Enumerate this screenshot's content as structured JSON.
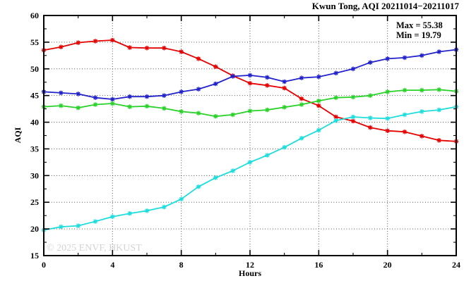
{
  "header": {
    "title": "Kwun Tong, AQI 20211014−20211017"
  },
  "stats_box": {
    "max_label": "Max = 55.38",
    "min_label": "Min = 19.79"
  },
  "watermark": {
    "text": "© 2025 ENVF, HKUST",
    "color": "#d4d4d4"
  },
  "chart_data": {
    "type": "line",
    "title": "Kwun Tong, AQI 20211014−20211017",
    "xlabel": "Hours",
    "ylabel": "AQI",
    "xlim": [
      0,
      24
    ],
    "ylim": [
      15,
      60
    ],
    "x_major_ticks": [
      0,
      4,
      8,
      12,
      16,
      20,
      24
    ],
    "x_minor_ticks": [
      2,
      6,
      10,
      14,
      18,
      22
    ],
    "y_major_ticks": [
      15,
      20,
      25,
      30,
      35,
      40,
      45,
      50,
      55,
      60
    ],
    "y_minor_ticks": [
      17.5,
      22.5,
      27.5,
      32.5,
      37.5,
      42.5,
      47.5,
      52.5,
      57.5
    ],
    "x_gridlines": [
      4,
      8,
      12,
      16,
      20
    ],
    "y_gridlines": [
      20,
      25,
      30,
      35,
      40,
      45,
      50,
      55
    ],
    "grid_style": "dotted",
    "legend": "none",
    "marker": "asterisk",
    "max": 55.38,
    "min": 19.79,
    "x": [
      0,
      1,
      2,
      3,
      4,
      5,
      6,
      7,
      8,
      9,
      10,
      11,
      12,
      13,
      14,
      15,
      16,
      17,
      18,
      19,
      20,
      21,
      22,
      23,
      24
    ],
    "series": [
      {
        "name": "red",
        "color": "#e60000",
        "values": [
          53.5,
          54.1,
          54.9,
          55.2,
          55.38,
          54.0,
          53.9,
          53.9,
          53.2,
          51.9,
          50.4,
          48.7,
          47.3,
          46.9,
          46.4,
          44.4,
          43.1,
          41.0,
          40.2,
          39.0,
          38.4,
          38.2,
          37.4,
          36.6,
          36.4
        ]
      },
      {
        "name": "blue",
        "color": "#2222cc",
        "values": [
          45.7,
          45.5,
          45.3,
          44.6,
          44.3,
          44.8,
          44.8,
          45.0,
          45.7,
          46.2,
          47.2,
          48.6,
          48.8,
          48.4,
          47.6,
          48.3,
          48.5,
          49.2,
          50.0,
          51.2,
          51.9,
          52.1,
          52.5,
          53.2,
          53.6
        ]
      },
      {
        "name": "green",
        "color": "#28d228",
        "values": [
          42.9,
          43.1,
          42.7,
          43.3,
          43.5,
          42.9,
          43.0,
          42.6,
          42.0,
          41.7,
          41.1,
          41.4,
          42.1,
          42.3,
          42.8,
          43.3,
          44.0,
          44.6,
          44.7,
          45.0,
          45.7,
          46.0,
          46.0,
          46.1,
          45.8
        ]
      },
      {
        "name": "cyan",
        "color": "#1ddddd",
        "values": [
          19.79,
          20.4,
          20.6,
          21.4,
          22.3,
          22.9,
          23.4,
          24.1,
          25.6,
          27.9,
          29.6,
          30.9,
          32.5,
          33.8,
          35.3,
          37.0,
          38.5,
          40.3,
          41.0,
          40.8,
          40.7,
          41.4,
          42.0,
          42.3,
          42.9
        ]
      }
    ]
  }
}
